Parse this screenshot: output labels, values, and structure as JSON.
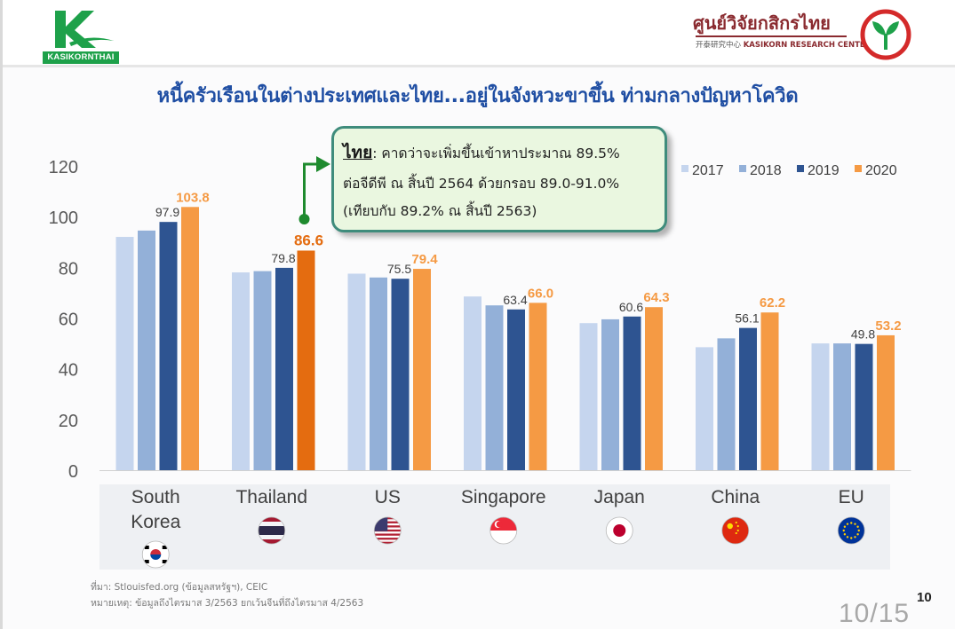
{
  "header": {
    "left_logo_text": "KASIKORNTHAI",
    "right_logo_title": "ศูนย์วิจัยกสิกรไทย",
    "right_logo_sub_cn": "开泰研究中心",
    "right_logo_sub_en": "KASIKORN RESEARCH CENTER"
  },
  "title": "หนี้ครัวเรือนในต่างประเทศและไทย...อยู่ในจังหวะขาขึ้น ท่ามกลางปัญหาโควิด",
  "callout": {
    "key": "ไทย",
    "line1": ": คาดว่าจะเพิ่มขึ้นเข้าหาประมาณ 89.5%",
    "line2": "ต่อจีดีพี ณ สิ้นปี 2564 ด้วยกรอบ 89.0-91.0%",
    "line3": "(เทียบกับ 89.2% ณ สิ้นปี 2563)"
  },
  "footer": {
    "source": "ที่มา: Stlouisfed.org (ข้อมูลสหรัฐฯ), CEIC",
    "note": "หมายเหตุ: ข้อมูลถึงไตรมาส 3/2563 ยกเว้นจีนที่ถึงไตรมาส 4/2563",
    "page_number": "10",
    "page_fraction": "10/15"
  },
  "colors": {
    "title": "#1f4ea3",
    "s2017": "#c5d5ee",
    "s2018": "#93b0d8",
    "s2019": "#2e5491",
    "s2020": "#f59a44",
    "s2020_highlight": "#e46c10",
    "callout_border": "#3f8c7c",
    "callout_fill": "#eaf7e0",
    "connector": "#1e8a2e"
  },
  "chart_data": {
    "type": "bar",
    "categories": [
      "South\nKorea",
      "Thailand",
      "US",
      "Singapore",
      "Japan",
      "China",
      "EU"
    ],
    "category_flags": [
      "south-korea-flag-icon",
      "thailand-flag-icon",
      "us-flag-icon",
      "singapore-flag-icon",
      "japan-flag-icon",
      "china-flag-icon",
      "eu-flag-icon"
    ],
    "series": [
      {
        "name": "2017",
        "values": [
          92.0,
          78.0,
          77.5,
          68.5,
          58.0,
          48.5,
          50.0
        ]
      },
      {
        "name": "2018",
        "values": [
          94.5,
          78.5,
          76.0,
          65.0,
          59.5,
          52.0,
          50.0
        ]
      },
      {
        "name": "2019",
        "values": [
          97.9,
          79.8,
          75.5,
          63.4,
          60.6,
          56.1,
          49.8
        ]
      },
      {
        "name": "2020",
        "values": [
          103.8,
          86.6,
          79.4,
          66.0,
          64.3,
          62.2,
          53.2
        ]
      }
    ],
    "labeled_series": [
      "2019",
      "2020"
    ],
    "highlight_category": "Thailand",
    "ylim": [
      0,
      120
    ],
    "yticks": [
      0,
      20,
      40,
      60,
      80,
      100,
      120
    ],
    "grid": false,
    "legend_position": "top-right",
    "title": "",
    "xlabel": "",
    "ylabel": ""
  }
}
